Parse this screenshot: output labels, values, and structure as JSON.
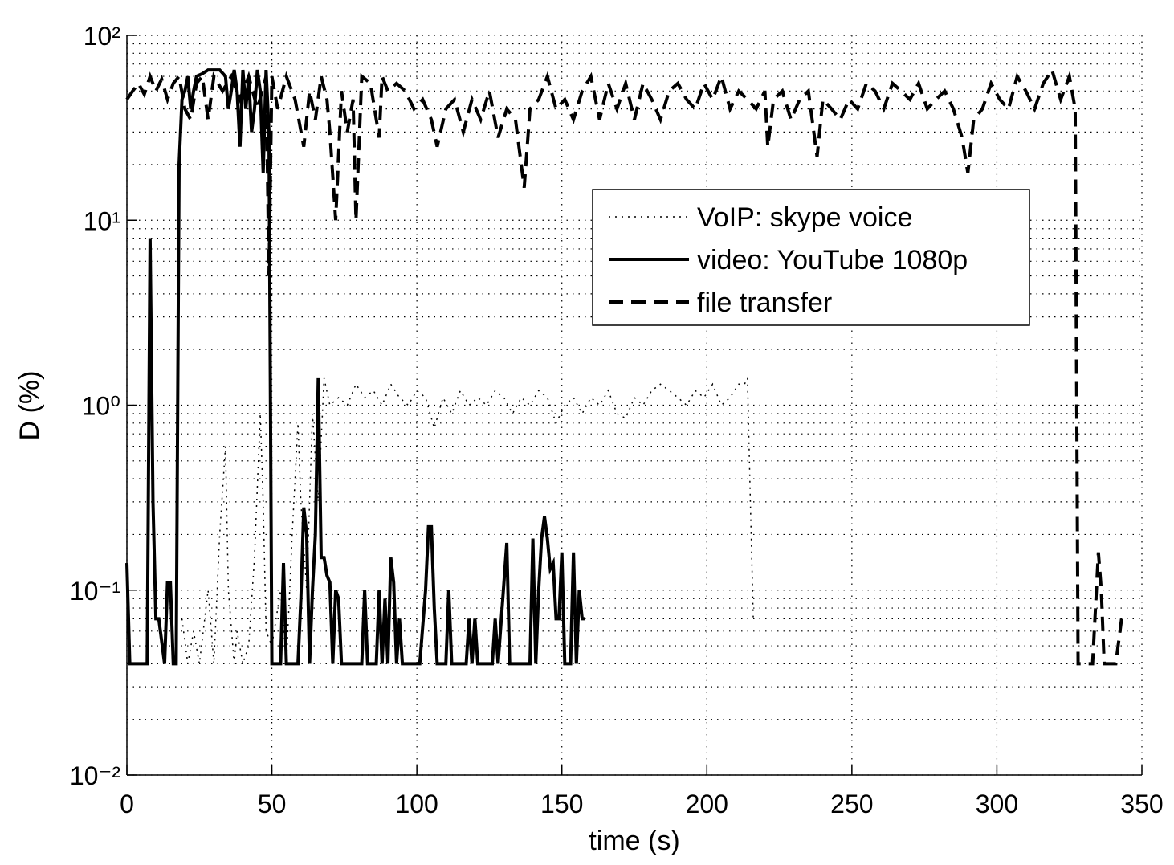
{
  "chart_data": {
    "type": "line",
    "xlabel": "time (s)",
    "ylabel": "D (%)",
    "xlim": [
      0,
      350
    ],
    "xticks": [
      0,
      50,
      100,
      150,
      200,
      250,
      300,
      350
    ],
    "ylim": [
      0.01,
      100
    ],
    "ylog": true,
    "yticks": [
      {
        "value": 0.01,
        "label": "10⁻²"
      },
      {
        "value": 0.1,
        "label": "10⁻¹"
      },
      {
        "value": 1,
        "label": "10⁰"
      },
      {
        "value": 10,
        "label": "10¹"
      },
      {
        "value": 100,
        "label": "10²"
      }
    ],
    "grid": true,
    "grid_style": "dotted",
    "legend": "upper right",
    "series": [
      {
        "name": "VoIP: skype voice",
        "color": "#000000",
        "style": "dotted",
        "x": [
          19,
          21,
          23,
          25,
          28,
          30,
          32,
          34,
          35,
          37,
          38,
          40,
          42,
          44,
          46,
          47,
          48,
          50,
          53,
          55,
          57,
          59,
          60,
          62,
          64,
          66,
          68,
          70,
          73,
          76,
          79,
          82,
          85,
          88,
          91,
          94,
          97,
          100,
          103,
          106,
          109,
          112,
          115,
          118,
          121,
          124,
          127,
          130,
          133,
          136,
          139,
          142,
          145,
          148,
          151,
          154,
          157,
          160,
          163,
          166,
          169,
          172,
          175,
          178,
          181,
          184,
          187,
          190,
          193,
          196,
          199,
          202,
          205,
          208,
          211,
          213,
          214,
          215,
          216
        ],
        "values": [
          0.07,
          0.04,
          0.06,
          0.04,
          0.1,
          0.04,
          0.2,
          0.6,
          0.1,
          0.04,
          0.06,
          0.04,
          0.05,
          0.15,
          0.9,
          0.3,
          0.06,
          0.05,
          0.1,
          0.04,
          0.2,
          0.8,
          0.3,
          0.1,
          0.9,
          0.3,
          1.4,
          1.0,
          1.1,
          1.0,
          1.3,
          1.1,
          1.2,
          1.0,
          1.3,
          1.1,
          1.0,
          1.2,
          1.1,
          0.75,
          1.1,
          0.9,
          1.2,
          1.0,
          1.1,
          1.0,
          1.2,
          1.1,
          0.9,
          1.1,
          1.0,
          1.2,
          1.1,
          0.8,
          1.0,
          1.1,
          0.9,
          1.1,
          1.0,
          1.2,
          0.9,
          0.85,
          1.1,
          1.0,
          1.2,
          1.3,
          1.2,
          1.1,
          1.0,
          1.2,
          1.1,
          1.3,
          1.0,
          1.1,
          1.3,
          1.3,
          1.4,
          0.3,
          0.07
        ]
      },
      {
        "name": "video: YouTube 1080p",
        "color": "#000000",
        "style": "solid",
        "x": [
          0,
          1,
          7,
          8,
          9,
          10,
          11,
          13,
          14,
          15,
          16,
          17,
          18,
          19,
          20,
          21,
          22,
          23,
          24,
          26,
          28,
          30,
          32,
          34,
          35,
          36,
          37,
          38,
          39,
          40,
          41,
          42,
          43,
          44,
          45,
          46,
          47,
          48,
          49,
          50,
          53,
          54,
          55,
          56,
          59,
          60,
          61,
          62,
          63,
          64,
          65,
          66,
          67,
          68,
          69,
          70,
          71,
          72,
          73,
          74,
          75,
          81,
          82,
          83,
          86,
          87,
          88,
          89,
          90,
          91,
          92,
          93,
          94,
          95,
          99,
          101,
          103,
          104,
          105,
          106,
          107,
          110,
          111,
          112,
          117,
          118,
          119,
          120,
          121,
          126,
          127,
          128,
          131,
          132,
          139,
          140,
          141,
          142,
          143,
          144,
          145,
          146,
          147,
          148,
          149,
          150,
          151,
          153,
          154,
          155,
          156,
          157,
          158
        ],
        "values": [
          0.14,
          0.04,
          0.04,
          8,
          0.3,
          0.07,
          0.07,
          0.04,
          0.11,
          0.11,
          0.04,
          0.04,
          20,
          45,
          50,
          60,
          40,
          50,
          60,
          62,
          65,
          65,
          65,
          60,
          40,
          50,
          65,
          50,
          25,
          65,
          40,
          60,
          30,
          40,
          65,
          50,
          18,
          65,
          30,
          0.04,
          0.04,
          0.14,
          0.04,
          0.04,
          0.04,
          0.09,
          0.28,
          0.2,
          0.04,
          0.1,
          0.2,
          1.4,
          0.15,
          0.15,
          0.12,
          0.11,
          0.04,
          0.1,
          0.09,
          0.04,
          0.04,
          0.04,
          0.1,
          0.04,
          0.04,
          0.1,
          0.04,
          0.09,
          0.04,
          0.15,
          0.11,
          0.04,
          0.07,
          0.04,
          0.04,
          0.04,
          0.1,
          0.22,
          0.22,
          0.08,
          0.04,
          0.04,
          0.1,
          0.04,
          0.04,
          0.07,
          0.04,
          0.07,
          0.04,
          0.04,
          0.07,
          0.04,
          0.18,
          0.04,
          0.04,
          0.19,
          0.04,
          0.1,
          0.19,
          0.25,
          0.19,
          0.13,
          0.14,
          0.07,
          0.07,
          0.16,
          0.04,
          0.04,
          0.16,
          0.04,
          0.1,
          0.07,
          0.07
        ]
      },
      {
        "name": "file transfer",
        "color": "#000000",
        "style": "dashed",
        "x": [
          0,
          2,
          4,
          6,
          8,
          10,
          12,
          14,
          16,
          18,
          20,
          22,
          24,
          26,
          28,
          30,
          33,
          36,
          39,
          42,
          45,
          48,
          49,
          50,
          52,
          55,
          58,
          61,
          63,
          65,
          67,
          69,
          70,
          72,
          74,
          76,
          78,
          79,
          81,
          84,
          87,
          88,
          90,
          93,
          96,
          99,
          102,
          105,
          107,
          110,
          113,
          116,
          119,
          122,
          125,
          128,
          131,
          134,
          137,
          139,
          142,
          145,
          148,
          151,
          154,
          157,
          160,
          163,
          166,
          169,
          172,
          175,
          178,
          181,
          184,
          187,
          190,
          193,
          196,
          199,
          202,
          205,
          208,
          211,
          214,
          217,
          220,
          221,
          223,
          226,
          229,
          232,
          235,
          238,
          240,
          243,
          246,
          249,
          252,
          255,
          258,
          261,
          264,
          267,
          270,
          273,
          276,
          279,
          282,
          285,
          288,
          290,
          292,
          295,
          298,
          301,
          304,
          307,
          310,
          313,
          316,
          319,
          322,
          325,
          327,
          328,
          333,
          335,
          336,
          337,
          341,
          343
        ],
        "values": [
          45,
          50,
          55,
          48,
          60,
          50,
          58,
          45,
          55,
          60,
          40,
          35,
          55,
          60,
          35,
          60,
          50,
          60,
          45,
          60,
          40,
          60,
          5,
          60,
          40,
          60,
          45,
          25,
          50,
          35,
          60,
          45,
          30,
          10,
          50,
          30,
          45,
          10,
          60,
          55,
          28,
          60,
          50,
          55,
          50,
          40,
          45,
          35,
          25,
          40,
          45,
          30,
          45,
          35,
          50,
          28,
          40,
          35,
          15,
          40,
          45,
          60,
          40,
          45,
          35,
          50,
          60,
          35,
          55,
          40,
          55,
          35,
          55,
          45,
          35,
          50,
          55,
          45,
          40,
          55,
          45,
          60,
          40,
          50,
          45,
          40,
          50,
          25,
          45,
          50,
          35,
          45,
          50,
          22,
          45,
          40,
          35,
          45,
          40,
          55,
          50,
          40,
          55,
          50,
          45,
          55,
          40,
          45,
          50,
          40,
          28,
          18,
          35,
          40,
          55,
          45,
          40,
          60,
          50,
          40,
          55,
          65,
          45,
          60,
          40,
          0.04,
          0.04,
          0.16,
          0.1,
          0.04,
          0.04,
          0.07
        ]
      }
    ]
  }
}
